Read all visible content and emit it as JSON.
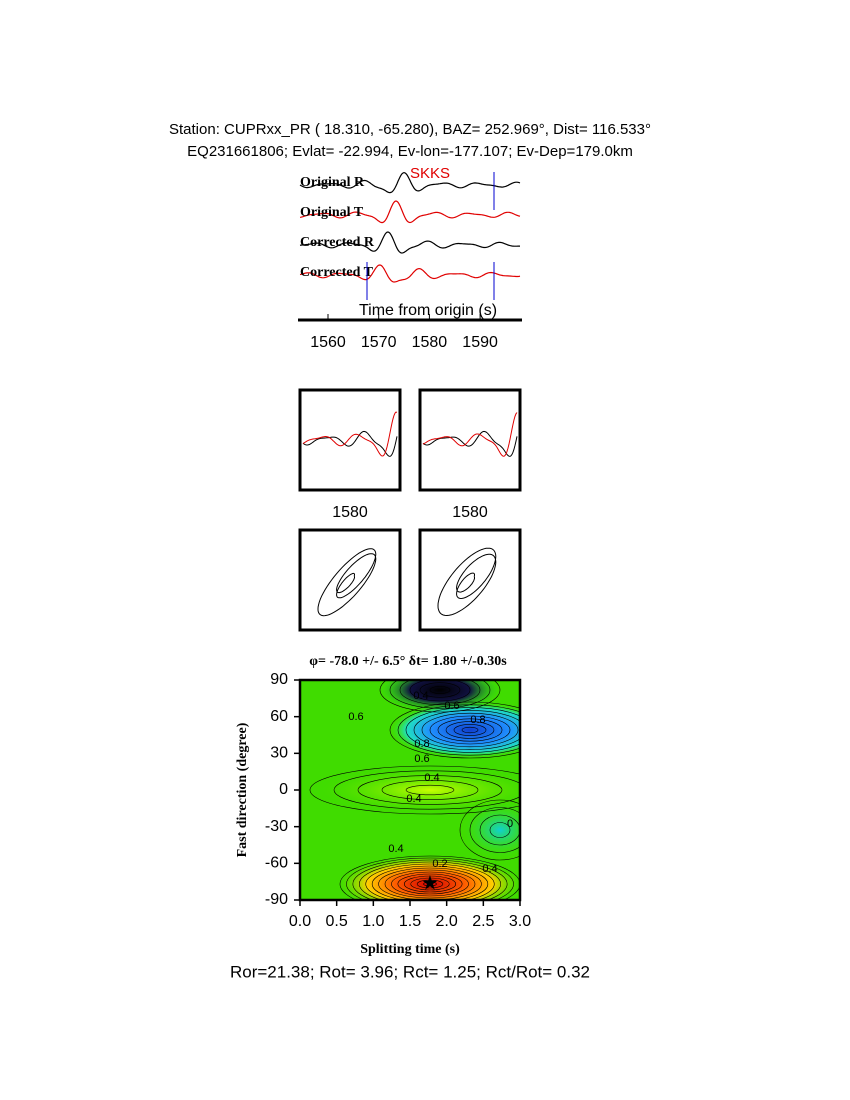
{
  "header": {
    "line1": "Station: CUPRxx_PR (  18.310,  -65.280), BAZ=  252.969°, Dist=  116.533°",
    "line2": "EQ231661806; Evlat= -22.994, Ev-lon=-177.107; Ev-Dep=179.0km"
  },
  "traces": {
    "phase": "SKKS",
    "labels": [
      "Original R",
      "Original T",
      "Corrected R",
      "Corrected T"
    ],
    "xlabel": "Time from origin (s)",
    "xticks": [
      1560,
      1570,
      1580,
      1590
    ]
  },
  "waveform_panels": {
    "left_xtick": 1580,
    "right_xtick": 1580
  },
  "grid_search": {
    "title": "φ= -78.0 +/- 6.5° δt= 1.80 +/-0.30s",
    "ylabel": "Fast direction (degree)",
    "xlabel": "Splitting time (s)",
    "yticks": [
      90,
      60,
      30,
      0,
      -30,
      -60,
      -90
    ],
    "xticks": [
      {
        "value": 0,
        "label": "0.0"
      },
      {
        "value": 0.5,
        "label": "0.5"
      },
      {
        "value": 1,
        "label": "1.0"
      },
      {
        "value": 1.5,
        "label": "1.5"
      },
      {
        "value": 2,
        "label": "2.0"
      },
      {
        "value": 2.5,
        "label": "2.5"
      },
      {
        "value": 3,
        "label": "3.0"
      }
    ],
    "contour_labels": [
      "0.4",
      "0.6",
      "0.8",
      "0.6",
      "0.8",
      "0.6",
      "0.4",
      "0.4",
      "0.4",
      "0.2",
      "0.4",
      "0"
    ]
  },
  "footer": "Ror=21.38; Rot= 3.96; Rct= 1.25; Rct/Rot= 0.32"
}
